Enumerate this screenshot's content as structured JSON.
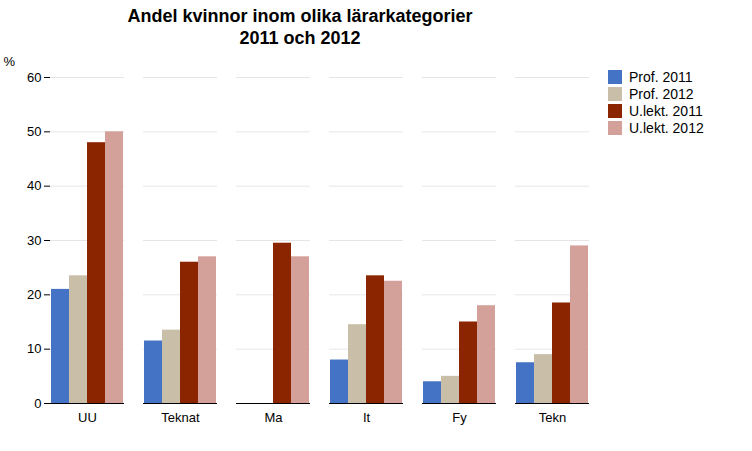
{
  "chart_data": {
    "type": "bar",
    "title": "Andel kvinnor inom olika lärarkategorier\n2011 och 2012",
    "ylabel": "%",
    "categories": [
      "UU",
      "Teknat",
      "Ma",
      "It",
      "Fy",
      "Tekn"
    ],
    "series": [
      {
        "name": "Prof. 2011",
        "color": "#4472c4",
        "values": [
          21,
          11.5,
          0,
          8,
          4,
          7.5
        ]
      },
      {
        "name": "Prof. 2012",
        "color": "#c9bfa8",
        "values": [
          23.5,
          13.5,
          0,
          14.5,
          5,
          9
        ]
      },
      {
        "name": "U.lekt. 2011",
        "color": "#8b2500",
        "values": [
          48,
          26,
          29.5,
          23.5,
          15,
          18.5
        ]
      },
      {
        "name": "U.lekt. 2012",
        "color": "#d4a09a",
        "values": [
          50,
          27,
          27,
          22.5,
          18,
          29
        ]
      }
    ],
    "ylim": [
      0,
      60
    ],
    "yticks": [
      0,
      10,
      20,
      30,
      40,
      50,
      60
    ],
    "grid": true,
    "legend": "right"
  }
}
